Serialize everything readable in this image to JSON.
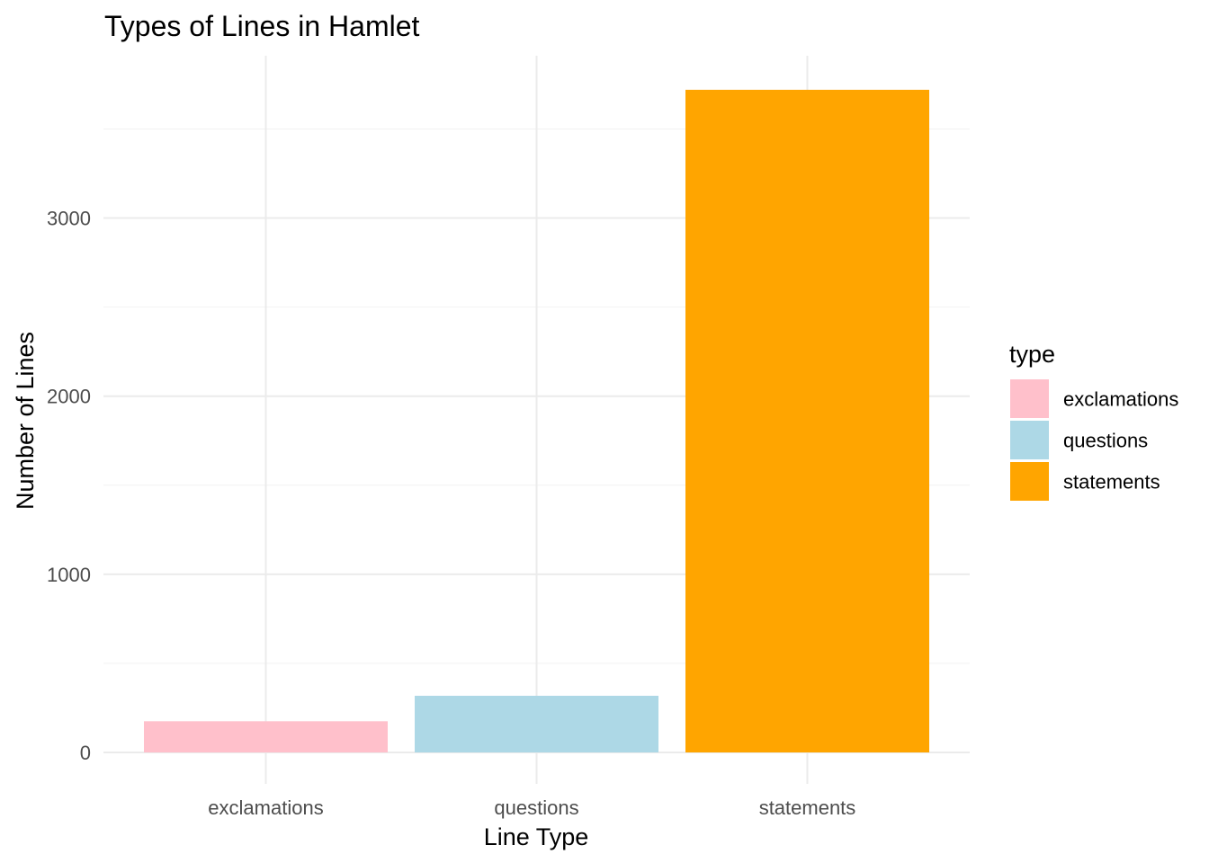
{
  "chart_data": {
    "type": "bar",
    "title": "Types of Lines in Hamlet",
    "xlabel": "Line Type",
    "ylabel": "Number of Lines",
    "categories": [
      "exclamations",
      "questions",
      "statements"
    ],
    "values": [
      175,
      318,
      3720
    ],
    "colors": [
      "#FFC0CB",
      "#ADD8E6",
      "#FFA500"
    ],
    "ylim": [
      0,
      3720
    ],
    "yticks": [
      0,
      1000,
      2000,
      3000
    ],
    "grid": true,
    "legend": {
      "title": "type",
      "placement": "right",
      "entries": [
        "exclamations",
        "questions",
        "statements"
      ]
    }
  }
}
